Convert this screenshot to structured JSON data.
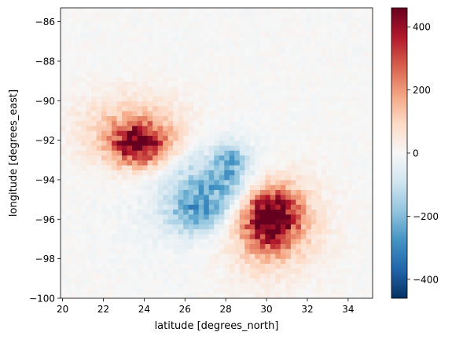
{
  "chart_data": {
    "type": "heatmap",
    "xlabel": "latitude [degrees_north]",
    "ylabel": "longitude [degrees_east]",
    "xlim": [
      19.9,
      35.2
    ],
    "ylim": [
      -100,
      -85.3
    ],
    "xticks": [
      20,
      22,
      24,
      26,
      28,
      30,
      32,
      34
    ],
    "yticks": [
      -86,
      -88,
      -90,
      -92,
      -94,
      -96,
      -98,
      -100
    ],
    "x_tick_labels": [
      "20",
      "22",
      "24",
      "26",
      "28",
      "30",
      "32",
      "34"
    ],
    "y_tick_labels": [
      "−86",
      "−88",
      "−90",
      "−92",
      "−94",
      "−96",
      "−98",
      "−100"
    ],
    "colormap": "RdBu_r",
    "color_range": [
      -460,
      460
    ],
    "colorbar_ticks": [
      400,
      200,
      0,
      -200,
      -400
    ],
    "colorbar_tick_labels": [
      "400",
      "200",
      "0",
      "−200",
      "−400"
    ],
    "grid_resolution_deg": 0.25,
    "features": [
      {
        "kind": "positive_anomaly",
        "center": [
          23.8,
          -92.2
        ],
        "peak": 420,
        "spread": [
          0.9,
          0.7
        ]
      },
      {
        "kind": "positive_anomaly",
        "center": [
          30.2,
          -95.9
        ],
        "peak": 450,
        "spread": [
          0.9,
          1.0
        ]
      },
      {
        "kind": "positive_halo",
        "center": [
          23.4,
          -91.6
        ],
        "peak": 140,
        "spread": [
          1.8,
          1.3
        ]
      },
      {
        "kind": "positive_halo",
        "center": [
          30.0,
          -96.3
        ],
        "peak": 170,
        "spread": [
          1.7,
          1.7
        ]
      },
      {
        "kind": "negative_anomaly",
        "center": [
          27.6,
          -94.3
        ],
        "peak": -170,
        "spread": [
          1.4,
          1.1
        ]
      },
      {
        "kind": "negative_anomaly",
        "center": [
          28.2,
          -93.0
        ],
        "peak": -140,
        "spread": [
          0.5,
          0.6
        ]
      },
      {
        "kind": "negative_anomaly",
        "center": [
          26.5,
          -95.8
        ],
        "peak": -160,
        "spread": [
          0.9,
          0.7
        ]
      },
      {
        "kind": "negative_halo",
        "center": [
          27.0,
          -95.0
        ],
        "peak": -70,
        "spread": [
          2.2,
          1.8
        ]
      }
    ]
  }
}
